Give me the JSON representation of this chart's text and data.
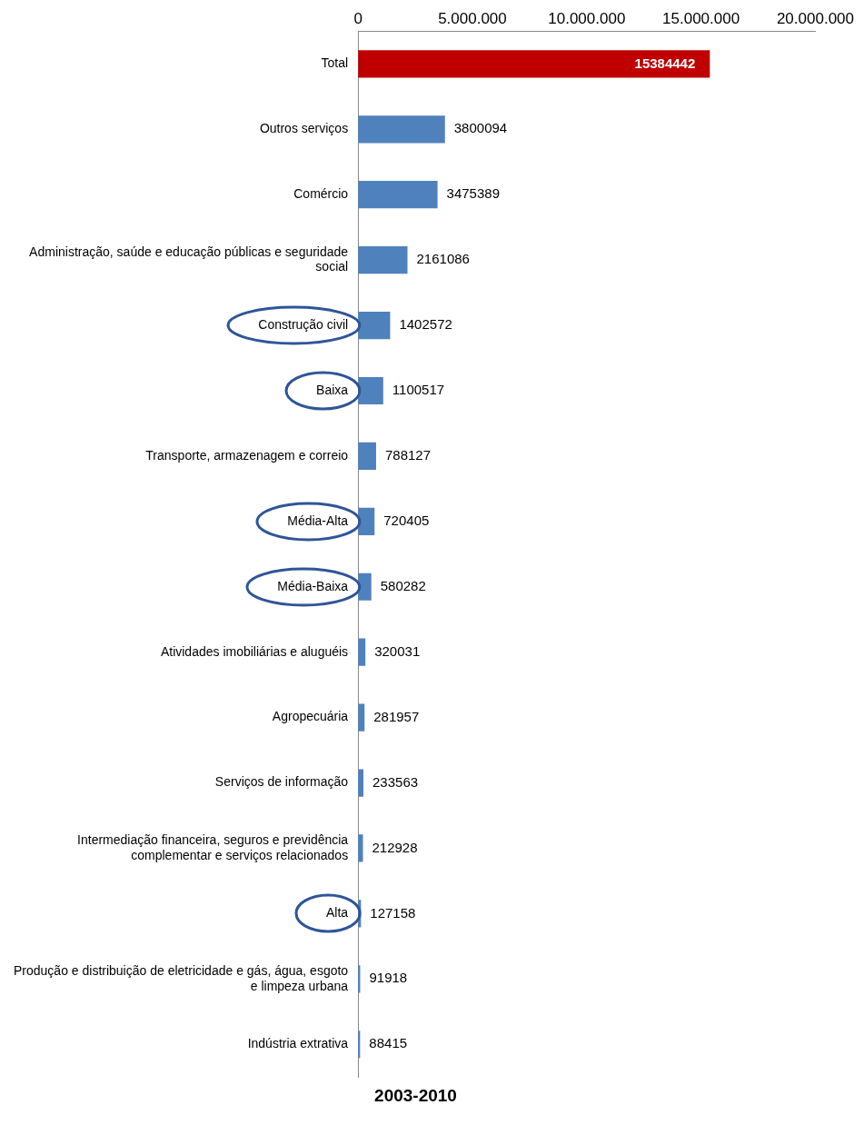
{
  "chart_data": {
    "type": "bar",
    "orientation": "horizontal",
    "title": "2003-2010",
    "categories": [
      "Total",
      "Outros serviços",
      "Comércio",
      "Administração, saúde e educação públicas e seguridade social",
      "Construção civil",
      "Baixa",
      "Transporte, armazenagem e correio",
      "Média-Alta",
      "Média-Baixa",
      "Atividades imobiliárias e aluguéis",
      "Agropecuária",
      "Serviços de informação",
      "Intermediação financeira, seguros e previdência complementar e serviços relacionados",
      "Alta",
      "Produção e distribuição de eletricidade e gás, água, esgoto e limpeza urbana",
      "Indústria extrativa"
    ],
    "values": [
      15384442,
      3800094,
      3475389,
      2161086,
      1402572,
      1100517,
      788127,
      720405,
      580282,
      320031,
      281957,
      233563,
      212928,
      127158,
      91918,
      88415
    ],
    "colors": [
      "#c00000",
      "#4f81bd",
      "#4f81bd",
      "#4f81bd",
      "#4f81bd",
      "#4f81bd",
      "#4f81bd",
      "#4f81bd",
      "#4f81bd",
      "#4f81bd",
      "#4f81bd",
      "#4f81bd",
      "#4f81bd",
      "#4f81bd",
      "#4f81bd",
      "#4f81bd"
    ],
    "xlim": [
      0,
      20000000
    ],
    "xticks": [
      0,
      {
        "value": 5000000,
        "label": "5.000.000"
      },
      {
        "value": 10000000,
        "label": "10.000.000"
      },
      {
        "value": 15000000,
        "label": "15.000.000"
      },
      {
        "value": 20000000,
        "label": "20.000.000"
      }
    ],
    "data_labels": true,
    "grid": false,
    "legend": false
  }
}
